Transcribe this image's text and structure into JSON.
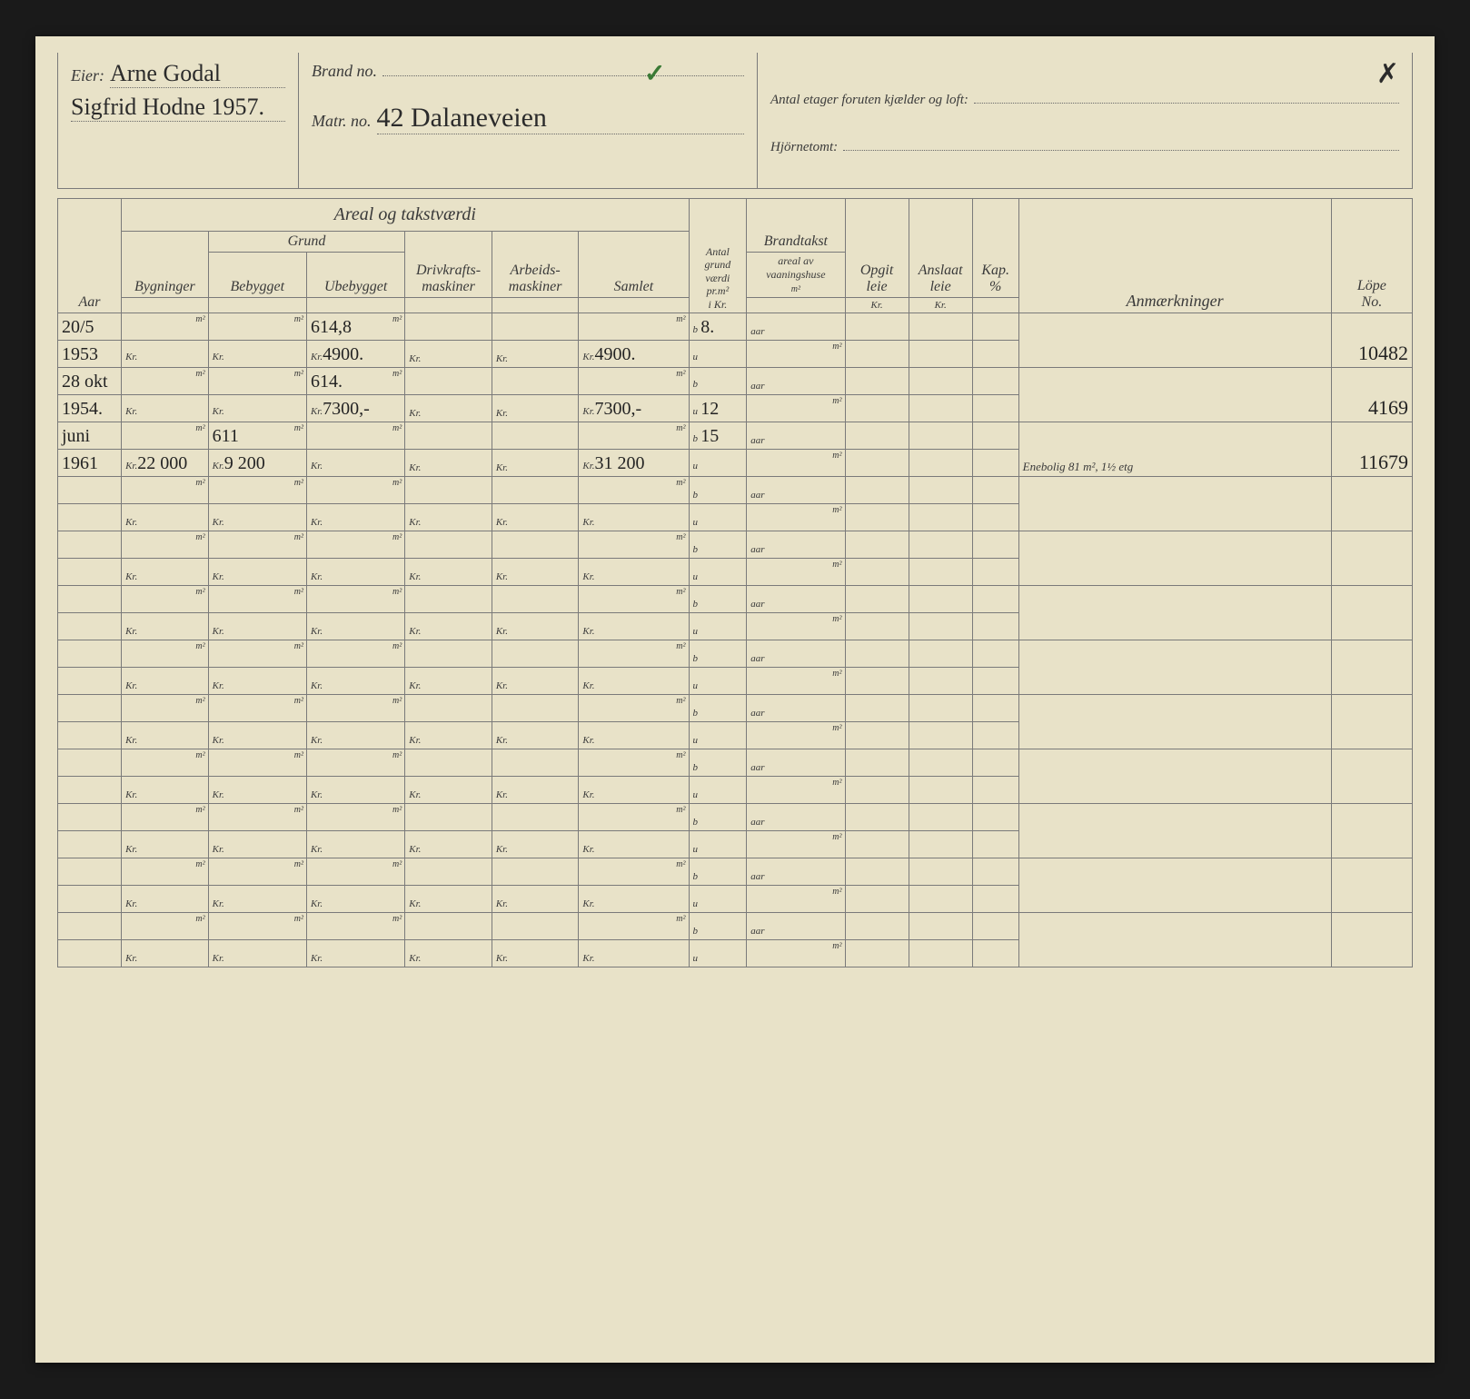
{
  "header": {
    "eier_label": "Eier:",
    "eier_value_1": "Arne Godal",
    "eier_value_2": "Sigfrid Hodne 1957.",
    "brandno_label": "Brand no.",
    "matrno_label": "Matr. no.",
    "matrno_value": "42 Dalaneveien",
    "etager_label": "Antal etager foruten kjælder og loft:",
    "hjorne_label": "Hjörnetomt:"
  },
  "columns": {
    "aar": "Aar",
    "areal_takst": "Areal og takstværdi",
    "grund": "Grund",
    "bygninger": "Bygninger",
    "bebygget": "Bebygget",
    "ubebygget": "Ubebygget",
    "drivkraft": "Drivkrafts-\nmaskiner",
    "arbeids": "Arbeids-\nmaskiner",
    "samlet": "Samlet",
    "antal": "Antal\ngrund\nværdi\npr.m²\ni Kr.",
    "brandtakst": "Brandtakst",
    "brandtakst_sub": "areal av\nvaaningshuse",
    "opgit": "Opgit\nleie",
    "anslaat": "Anslaat\nleie",
    "kap": "Kap.\n%",
    "anm": "Anmærkninger",
    "lope": "Löpe\nNo."
  },
  "units": {
    "kr": "Kr.",
    "m2": "m²",
    "aar": "aar",
    "b": "b",
    "u": "u"
  },
  "rows": [
    {
      "date": "20/5",
      "year": "1953",
      "ubebygget_m2": "614,8",
      "ubebygget_kr": "4900.",
      "samlet_kr": "4900.",
      "antal_b": "8.",
      "lope": "10482"
    },
    {
      "date": "28 okt",
      "year": "1954.",
      "ubebygget_m2": "614.",
      "ubebygget_kr": "7300,-",
      "samlet_kr": "7300,-",
      "antal_b": "",
      "antal_u": "12",
      "lope": "4169"
    },
    {
      "date": "juni",
      "year": "1961",
      "bygninger_kr": "22 000",
      "bebygget_m2": "611",
      "bebygget_kr": "9 200",
      "samlet_kr": "31 200",
      "antal_b": "15",
      "anm": "Enebolig 81 m², 1½ etg",
      "lope": "11679"
    }
  ],
  "table": {
    "empty_row_count": 9,
    "background_color": "#e8e2c8",
    "border_color": "#7a7a7a",
    "printed_text_color": "#3a3a3a",
    "handwriting_color": "#2b2b2b"
  }
}
